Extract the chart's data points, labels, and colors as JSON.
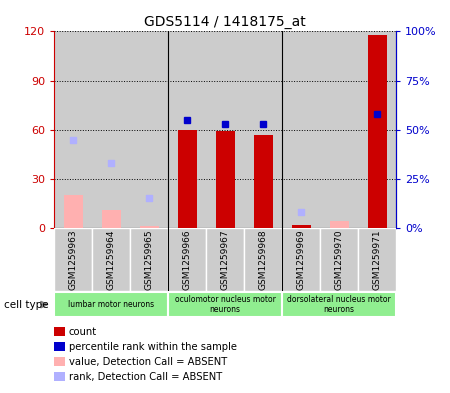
{
  "title": "GDS5114 / 1418175_at",
  "samples": [
    "GSM1259963",
    "GSM1259964",
    "GSM1259965",
    "GSM1259966",
    "GSM1259967",
    "GSM1259968",
    "GSM1259969",
    "GSM1259970",
    "GSM1259971"
  ],
  "count_values": [
    null,
    null,
    null,
    60,
    59,
    57,
    2,
    null,
    118
  ],
  "count_absent": [
    20,
    11,
    1,
    null,
    null,
    null,
    null,
    4,
    null
  ],
  "rank_values_pct": [
    null,
    null,
    null,
    55,
    53,
    53,
    null,
    null,
    58
  ],
  "rank_absent_pct": [
    45,
    33,
    15,
    null,
    null,
    null,
    8,
    null,
    null
  ],
  "ylim_left": [
    0,
    120
  ],
  "ylim_right": [
    0,
    100
  ],
  "yticks_left": [
    0,
    30,
    60,
    90,
    120
  ],
  "ytick_labels_left": [
    "0",
    "30",
    "60",
    "90",
    "120"
  ],
  "ytick_labels_right": [
    "0%",
    "25%",
    "50%",
    "75%",
    "100%"
  ],
  "yticks_right": [
    0,
    25,
    50,
    75,
    100
  ],
  "groups": [
    {
      "label": "lumbar motor neurons",
      "start": 0,
      "end": 3
    },
    {
      "label": "oculomotor nucleus motor\nneurons",
      "start": 3,
      "end": 6
    },
    {
      "label": "dorsolateral nucleus motor\nneurons",
      "start": 6,
      "end": 9
    }
  ],
  "color_count": "#cc0000",
  "color_rank": "#0000cc",
  "color_count_absent": "#ffb0b0",
  "color_rank_absent": "#b0b0ff",
  "bar_width": 0.5,
  "marker_size": 5,
  "group_bg": "#90ee90",
  "sample_bg": "#cccccc",
  "legend_items": [
    {
      "color": "#cc0000",
      "label": "count"
    },
    {
      "color": "#0000cc",
      "label": "percentile rank within the sample"
    },
    {
      "color": "#ffb0b0",
      "label": "value, Detection Call = ABSENT"
    },
    {
      "color": "#b0b0ff",
      "label": "rank, Detection Call = ABSENT"
    }
  ]
}
